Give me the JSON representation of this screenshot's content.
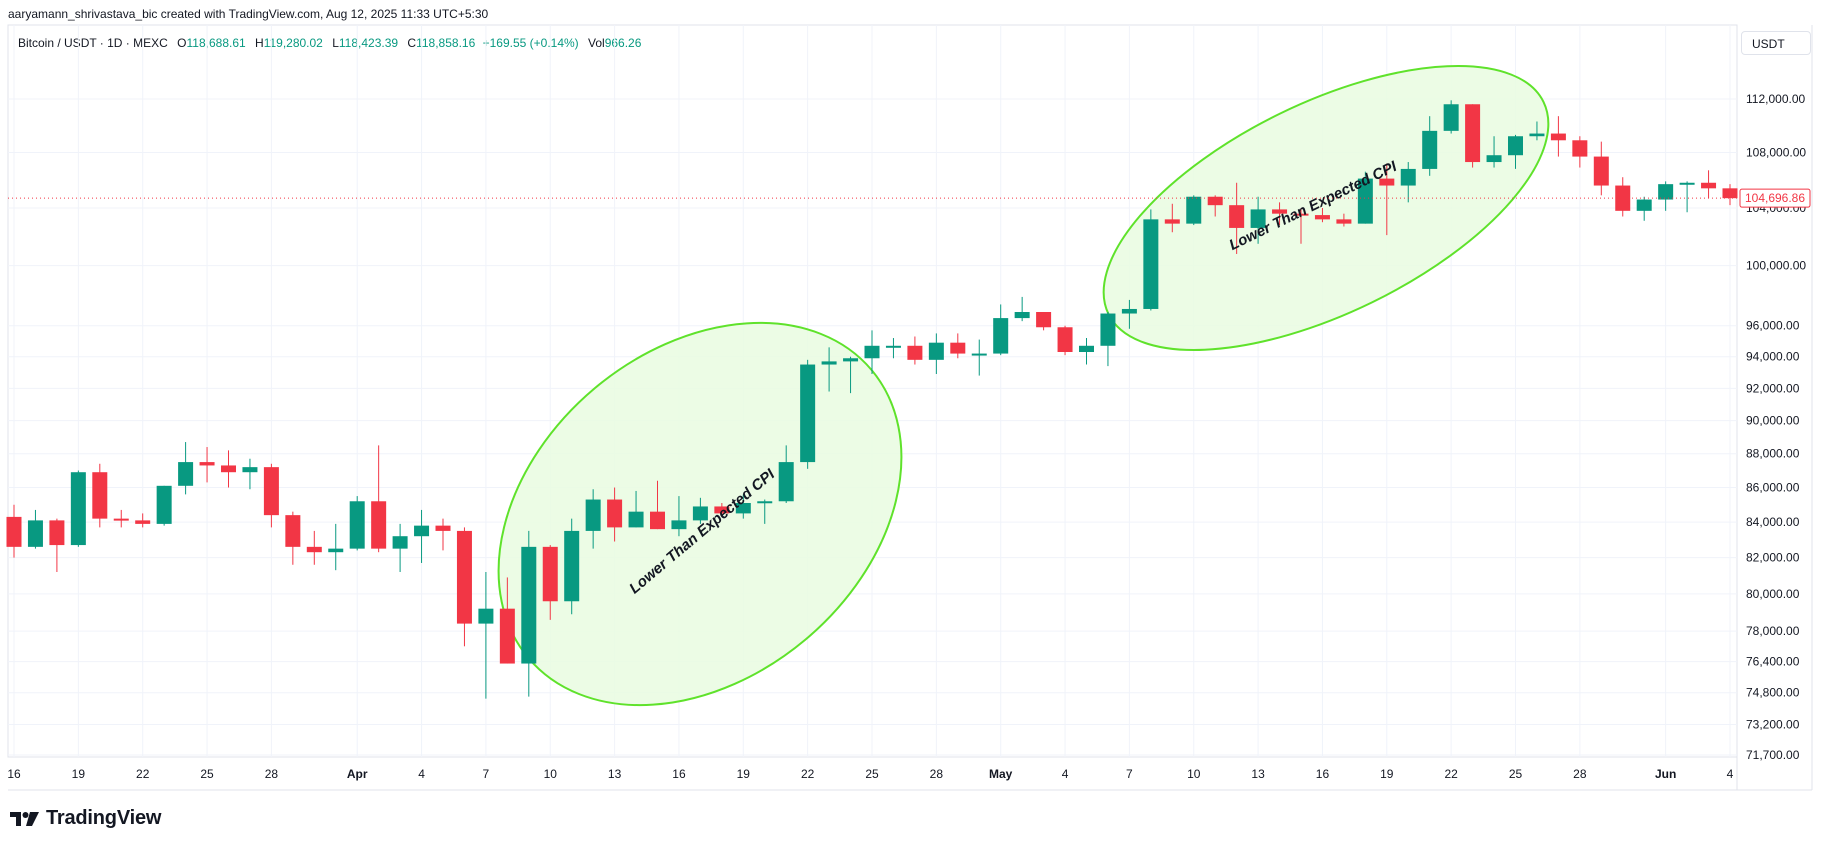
{
  "header": {
    "credit": "aaryamann_shrivastava_bic created with TradingView.com, Aug 12, 2025 11:33 UTC+5:30",
    "currency": "USDT"
  },
  "legend": {
    "symbol": "Bitcoin / USDT · 1D · MEXC",
    "open_label": "O",
    "open": "118,688.61",
    "high_label": "H",
    "high": "119,280.02",
    "low_label": "L",
    "low": "118,423.39",
    "close_label": "C",
    "close": "118,858.16",
    "change": "+169.55 (+0.14%)",
    "vol_label": "Vol",
    "vol": "966.26"
  },
  "brand": {
    "name": "TradingView"
  },
  "colors": {
    "up": "#089981",
    "down": "#f23645",
    "highlight_stroke": "#5fe22b",
    "highlight_fill": "#e9fbe0"
  },
  "chart_data": {
    "type": "candlestick",
    "y_scale": "log",
    "ylim": [
      71700,
      116000
    ],
    "y_ticks": [
      {
        "label": "112,000.00",
        "v": 112000
      },
      {
        "label": "108,000.00",
        "v": 108000
      },
      {
        "label": "104,000.00",
        "v": 104000
      },
      {
        "label": "100,000.00",
        "v": 100000
      },
      {
        "label": "96,000.00",
        "v": 96000
      },
      {
        "label": "94,000.00",
        "v": 94000
      },
      {
        "label": "92,000.00",
        "v": 92000
      },
      {
        "label": "90,000.00",
        "v": 90000
      },
      {
        "label": "88,000.00",
        "v": 88000
      },
      {
        "label": "86,000.00",
        "v": 86000
      },
      {
        "label": "84,000.00",
        "v": 84000
      },
      {
        "label": "82,000.00",
        "v": 82000
      },
      {
        "label": "80,000.00",
        "v": 80000
      },
      {
        "label": "78,000.00",
        "v": 78000
      },
      {
        "label": "76,400.00",
        "v": 76400
      },
      {
        "label": "74,800.00",
        "v": 74800
      },
      {
        "label": "73,200.00",
        "v": 73200
      },
      {
        "label": "71,700.00",
        "v": 71700
      }
    ],
    "x_ticks": [
      {
        "label": "16",
        "d": 0,
        "bold": false
      },
      {
        "label": "19",
        "d": 3,
        "bold": false
      },
      {
        "label": "22",
        "d": 6,
        "bold": false
      },
      {
        "label": "25",
        "d": 9,
        "bold": false
      },
      {
        "label": "28",
        "d": 12,
        "bold": false
      },
      {
        "label": "Apr",
        "d": 16,
        "bold": true
      },
      {
        "label": "4",
        "d": 19,
        "bold": false
      },
      {
        "label": "7",
        "d": 22,
        "bold": false
      },
      {
        "label": "10",
        "d": 25,
        "bold": false
      },
      {
        "label": "13",
        "d": 28,
        "bold": false
      },
      {
        "label": "16",
        "d": 31,
        "bold": false
      },
      {
        "label": "19",
        "d": 34,
        "bold": false
      },
      {
        "label": "22",
        "d": 37,
        "bold": false
      },
      {
        "label": "25",
        "d": 40,
        "bold": false
      },
      {
        "label": "28",
        "d": 43,
        "bold": false
      },
      {
        "label": "May",
        "d": 46,
        "bold": true
      },
      {
        "label": "4",
        "d": 49,
        "bold": false
      },
      {
        "label": "7",
        "d": 52,
        "bold": false
      },
      {
        "label": "10",
        "d": 55,
        "bold": false
      },
      {
        "label": "13",
        "d": 58,
        "bold": false
      },
      {
        "label": "16",
        "d": 61,
        "bold": false
      },
      {
        "label": "19",
        "d": 64,
        "bold": false
      },
      {
        "label": "22",
        "d": 67,
        "bold": false
      },
      {
        "label": "25",
        "d": 70,
        "bold": false
      },
      {
        "label": "28",
        "d": 73,
        "bold": false
      },
      {
        "label": "Jun",
        "d": 77,
        "bold": true
      },
      {
        "label": "4",
        "d": 80,
        "bold": false
      }
    ],
    "candles": [
      {
        "date": "2025-03-16",
        "o": 84300,
        "h": 85000,
        "l": 82000,
        "c": 82600
      },
      {
        "date": "2025-03-17",
        "o": 82600,
        "h": 84700,
        "l": 82500,
        "c": 84100
      },
      {
        "date": "2025-03-18",
        "o": 84100,
        "h": 84200,
        "l": 81200,
        "c": 82700
      },
      {
        "date": "2025-03-19",
        "o": 82700,
        "h": 87000,
        "l": 82600,
        "c": 86900
      },
      {
        "date": "2025-03-20",
        "o": 86900,
        "h": 87400,
        "l": 83700,
        "c": 84200
      },
      {
        "date": "2025-03-21",
        "o": 84200,
        "h": 84700,
        "l": 83700,
        "c": 84100
      },
      {
        "date": "2025-03-22",
        "o": 84100,
        "h": 84500,
        "l": 83700,
        "c": 83900
      },
      {
        "date": "2025-03-23",
        "o": 83900,
        "h": 86100,
        "l": 83800,
        "c": 86100
      },
      {
        "date": "2025-03-24",
        "o": 86100,
        "h": 88700,
        "l": 85600,
        "c": 87500
      },
      {
        "date": "2025-03-25",
        "o": 87500,
        "h": 88400,
        "l": 86300,
        "c": 87300
      },
      {
        "date": "2025-03-26",
        "o": 87300,
        "h": 88200,
        "l": 86000,
        "c": 86900
      },
      {
        "date": "2025-03-27",
        "o": 86900,
        "h": 87700,
        "l": 85900,
        "c": 87200
      },
      {
        "date": "2025-03-28",
        "o": 87200,
        "h": 87400,
        "l": 83700,
        "c": 84400
      },
      {
        "date": "2025-03-29",
        "o": 84400,
        "h": 84600,
        "l": 81600,
        "c": 82600
      },
      {
        "date": "2025-03-30",
        "o": 82600,
        "h": 83500,
        "l": 81600,
        "c": 82300
      },
      {
        "date": "2025-03-31",
        "o": 82300,
        "h": 83900,
        "l": 81300,
        "c": 82500
      },
      {
        "date": "2025-04-01",
        "o": 82500,
        "h": 85500,
        "l": 82400,
        "c": 85200
      },
      {
        "date": "2025-04-02",
        "o": 85200,
        "h": 88500,
        "l": 82300,
        "c": 82500
      },
      {
        "date": "2025-04-03",
        "o": 82500,
        "h": 83900,
        "l": 81200,
        "c": 83200
      },
      {
        "date": "2025-04-04",
        "o": 83200,
        "h": 84700,
        "l": 81700,
        "c": 83800
      },
      {
        "date": "2025-04-05",
        "o": 83800,
        "h": 84200,
        "l": 82400,
        "c": 83500
      },
      {
        "date": "2025-04-06",
        "o": 83500,
        "h": 83700,
        "l": 77200,
        "c": 78400
      },
      {
        "date": "2025-04-07",
        "o": 78400,
        "h": 81200,
        "l": 74500,
        "c": 79200
      },
      {
        "date": "2025-04-08",
        "o": 79200,
        "h": 80900,
        "l": 76300,
        "c": 76300
      },
      {
        "date": "2025-04-09",
        "o": 76300,
        "h": 83500,
        "l": 74600,
        "c": 82600
      },
      {
        "date": "2025-04-10",
        "o": 82600,
        "h": 82700,
        "l": 78600,
        "c": 79600
      },
      {
        "date": "2025-04-11",
        "o": 79600,
        "h": 84200,
        "l": 78900,
        "c": 83500
      },
      {
        "date": "2025-04-12",
        "o": 83500,
        "h": 85900,
        "l": 82500,
        "c": 85300
      },
      {
        "date": "2025-04-13",
        "o": 85300,
        "h": 86000,
        "l": 82900,
        "c": 83700
      },
      {
        "date": "2025-04-14",
        "o": 83700,
        "h": 85800,
        "l": 83700,
        "c": 84600
      },
      {
        "date": "2025-04-15",
        "o": 84600,
        "h": 86400,
        "l": 83600,
        "c": 83600
      },
      {
        "date": "2025-04-16",
        "o": 83600,
        "h": 85500,
        "l": 83200,
        "c": 84100
      },
      {
        "date": "2025-04-17",
        "o": 84100,
        "h": 85400,
        "l": 83900,
        "c": 84900
      },
      {
        "date": "2025-04-18",
        "o": 84900,
        "h": 85100,
        "l": 84300,
        "c": 84500
      },
      {
        "date": "2025-04-19",
        "o": 84500,
        "h": 85600,
        "l": 84200,
        "c": 85100
      },
      {
        "date": "2025-04-20",
        "o": 85100,
        "h": 85300,
        "l": 83900,
        "c": 85200
      },
      {
        "date": "2025-04-21",
        "o": 85200,
        "h": 88500,
        "l": 85100,
        "c": 87500
      },
      {
        "date": "2025-04-22",
        "o": 87500,
        "h": 93800,
        "l": 87100,
        "c": 93500
      },
      {
        "date": "2025-04-23",
        "o": 93500,
        "h": 94600,
        "l": 91800,
        "c": 93700
      },
      {
        "date": "2025-04-24",
        "o": 93700,
        "h": 94000,
        "l": 91700,
        "c": 93900
      },
      {
        "date": "2025-04-25",
        "o": 93900,
        "h": 95700,
        "l": 92900,
        "c": 94700
      },
      {
        "date": "2025-04-26",
        "o": 94700,
        "h": 95200,
        "l": 93900,
        "c": 94700
      },
      {
        "date": "2025-04-27",
        "o": 94700,
        "h": 95300,
        "l": 93500,
        "c": 93800
      },
      {
        "date": "2025-04-28",
        "o": 93800,
        "h": 95500,
        "l": 92900,
        "c": 94900
      },
      {
        "date": "2025-04-29",
        "o": 94900,
        "h": 95500,
        "l": 93900,
        "c": 94200
      },
      {
        "date": "2025-04-30",
        "o": 94200,
        "h": 95100,
        "l": 92800,
        "c": 94200
      },
      {
        "date": "2025-05-01",
        "o": 94200,
        "h": 97400,
        "l": 94100,
        "c": 96500
      },
      {
        "date": "2025-05-02",
        "o": 96500,
        "h": 97900,
        "l": 96300,
        "c": 96900
      },
      {
        "date": "2025-05-03",
        "o": 96900,
        "h": 96900,
        "l": 95700,
        "c": 95900
      },
      {
        "date": "2025-05-04",
        "o": 95900,
        "h": 96000,
        "l": 94100,
        "c": 94300
      },
      {
        "date": "2025-05-05",
        "o": 94300,
        "h": 95200,
        "l": 93500,
        "c": 94700
      },
      {
        "date": "2025-05-06",
        "o": 94700,
        "h": 96900,
        "l": 93400,
        "c": 96800
      },
      {
        "date": "2025-05-07",
        "o": 96800,
        "h": 97700,
        "l": 95800,
        "c": 97100
      },
      {
        "date": "2025-05-08",
        "o": 97100,
        "h": 103900,
        "l": 97000,
        "c": 103200
      },
      {
        "date": "2025-05-09",
        "o": 103200,
        "h": 104300,
        "l": 102300,
        "c": 102900
      },
      {
        "date": "2025-05-10",
        "o": 102900,
        "h": 104900,
        "l": 102800,
        "c": 104800
      },
      {
        "date": "2025-05-11",
        "o": 104800,
        "h": 104900,
        "l": 103400,
        "c": 104200
      },
      {
        "date": "2025-05-12",
        "o": 104200,
        "h": 105800,
        "l": 100800,
        "c": 102600
      },
      {
        "date": "2025-05-13",
        "o": 102600,
        "h": 104800,
        "l": 101500,
        "c": 103900
      },
      {
        "date": "2025-05-14",
        "o": 103900,
        "h": 104400,
        "l": 102800,
        "c": 103600
      },
      {
        "date": "2025-05-15",
        "o": 103600,
        "h": 104000,
        "l": 101500,
        "c": 103500
      },
      {
        "date": "2025-05-16",
        "o": 103500,
        "h": 104000,
        "l": 103000,
        "c": 103200
      },
      {
        "date": "2025-05-17",
        "o": 103200,
        "h": 103600,
        "l": 102700,
        "c": 102900
      },
      {
        "date": "2025-05-18",
        "o": 102900,
        "h": 106600,
        "l": 102900,
        "c": 106100
      },
      {
        "date": "2025-05-19",
        "o": 106100,
        "h": 107200,
        "l": 102100,
        "c": 105600
      },
      {
        "date": "2025-05-20",
        "o": 105600,
        "h": 107300,
        "l": 104400,
        "c": 106800
      },
      {
        "date": "2025-05-21",
        "o": 106800,
        "h": 110700,
        "l": 106300,
        "c": 109600
      },
      {
        "date": "2025-05-22",
        "o": 109600,
        "h": 111900,
        "l": 109400,
        "c": 111600
      },
      {
        "date": "2025-05-23",
        "o": 111600,
        "h": 111600,
        "l": 106900,
        "c": 107300
      },
      {
        "date": "2025-05-24",
        "o": 107300,
        "h": 109200,
        "l": 106900,
        "c": 107800
      },
      {
        "date": "2025-05-25",
        "o": 107800,
        "h": 109300,
        "l": 106800,
        "c": 109200
      },
      {
        "date": "2025-05-26",
        "o": 109200,
        "h": 110300,
        "l": 108900,
        "c": 109400
      },
      {
        "date": "2025-05-27",
        "o": 109400,
        "h": 110700,
        "l": 107700,
        "c": 108900
      },
      {
        "date": "2025-05-28",
        "o": 108900,
        "h": 109200,
        "l": 106900,
        "c": 107700
      },
      {
        "date": "2025-05-29",
        "o": 107700,
        "h": 108800,
        "l": 104900,
        "c": 105600
      },
      {
        "date": "2025-05-30",
        "o": 105600,
        "h": 106200,
        "l": 103400,
        "c": 103800
      },
      {
        "date": "2025-05-31",
        "o": 103800,
        "h": 104800,
        "l": 103100,
        "c": 104600
      },
      {
        "date": "2025-06-01",
        "o": 104600,
        "h": 105900,
        "l": 103800,
        "c": 105700
      },
      {
        "date": "2025-06-02",
        "o": 105700,
        "h": 105900,
        "l": 103700,
        "c": 105800
      },
      {
        "date": "2025-06-03",
        "o": 105800,
        "h": 106700,
        "l": 104700,
        "c": 105400
      },
      {
        "date": "2025-06-04",
        "o": 105400,
        "h": 105700,
        "l": 104200,
        "c": 104697
      }
    ],
    "last_price": {
      "label": "104,696.86",
      "v": 104697
    },
    "annotations": [
      {
        "text": "Lower Than Expected CPI"
      },
      {
        "text": "Lower Than Expected CPI"
      }
    ],
    "grid": true
  }
}
